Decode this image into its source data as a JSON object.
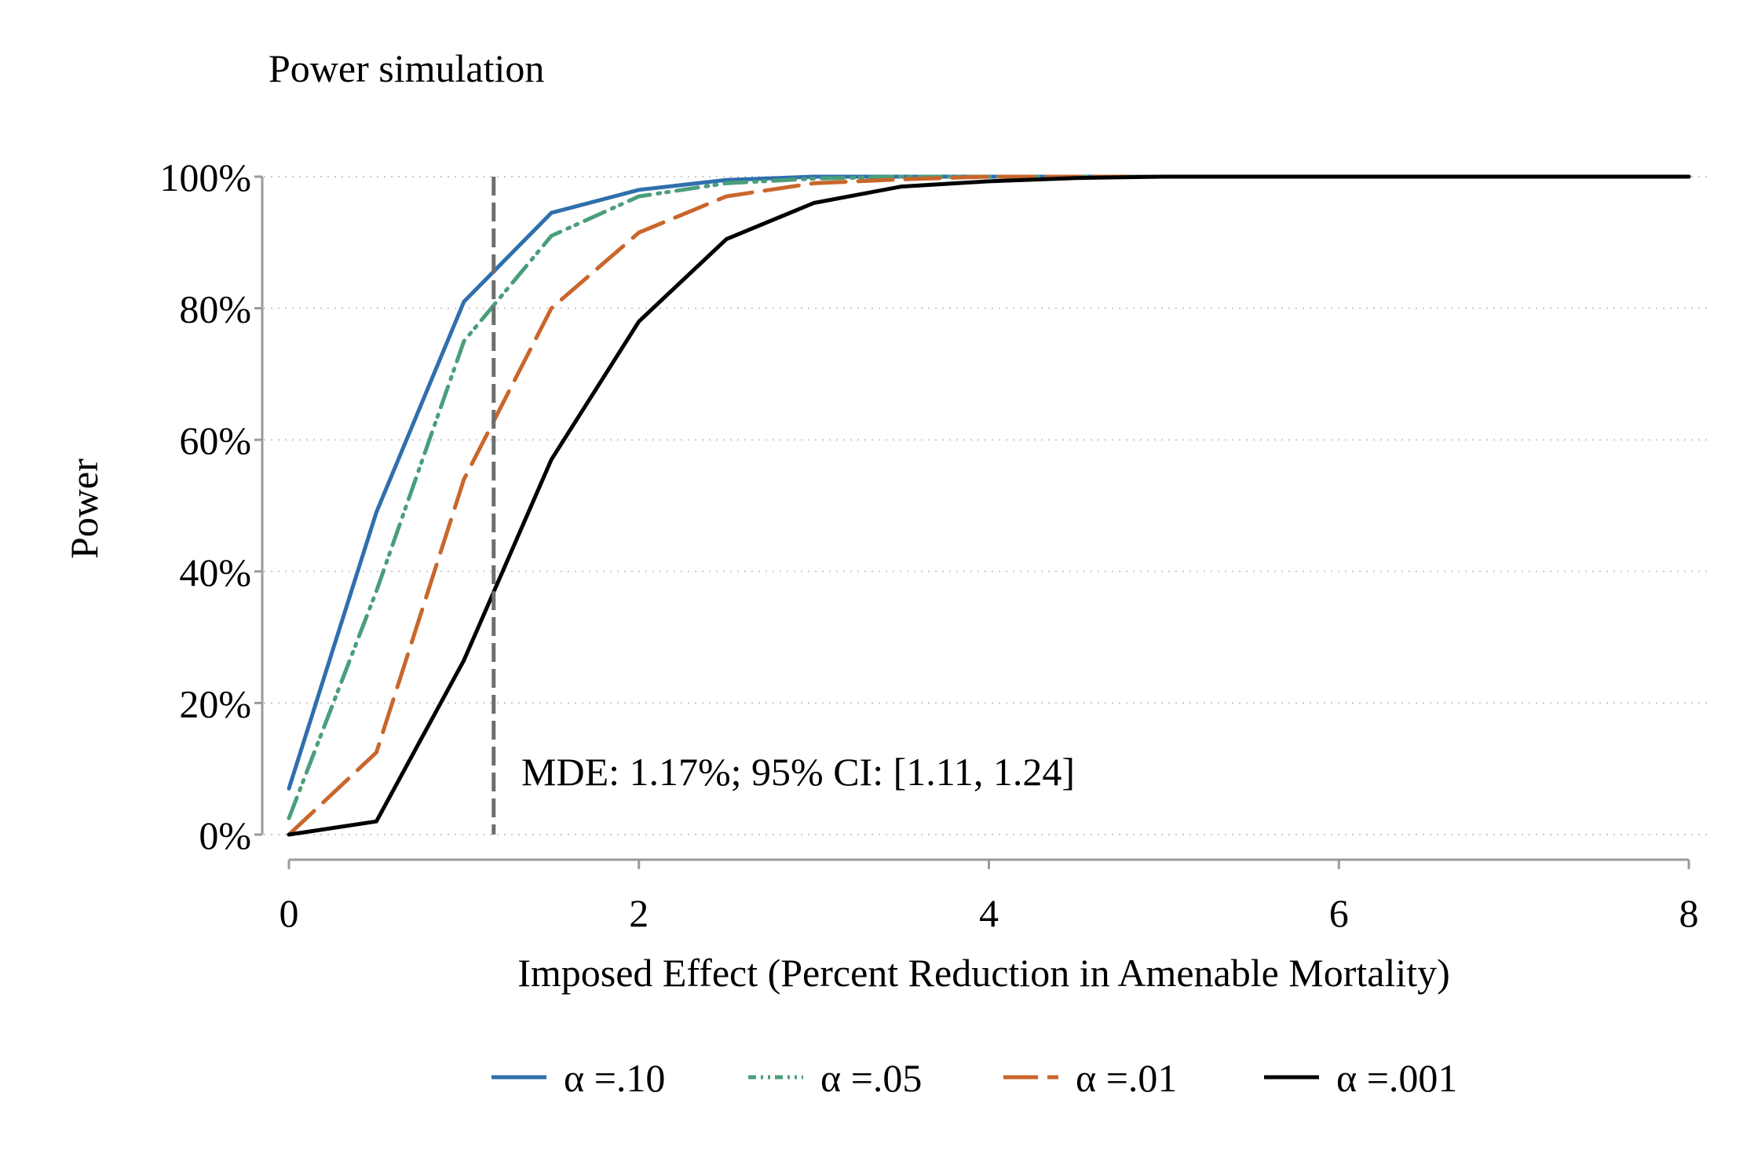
{
  "chart_data": {
    "type": "line",
    "title": "Power simulation",
    "xlabel": "Imposed Effect (Percent Reduction in Amenable Mortality)",
    "ylabel": "Power",
    "xlim": [
      0,
      8
    ],
    "ylim": [
      0,
      100
    ],
    "x_ticks": [
      0,
      2,
      4,
      6,
      8
    ],
    "x_tick_labels": [
      "0",
      "2",
      "4",
      "6",
      "8"
    ],
    "y_ticks": [
      0,
      20,
      40,
      60,
      80,
      100
    ],
    "y_tick_labels": [
      "0%",
      "20%",
      "40%",
      "60%",
      "80%",
      "100%"
    ],
    "grid": "horizontal dotted",
    "legend_position": "bottom",
    "annotation": {
      "text": "MDE: 1.17%; 95% CI: [1.11, 1.24]",
      "x": 1.17
    },
    "x": [
      0,
      0.5,
      1,
      1.5,
      2,
      2.5,
      3,
      3.5,
      4,
      4.5,
      5,
      5.5,
      6,
      6.5,
      7,
      7.5,
      8
    ],
    "series": [
      {
        "name": "α =.10",
        "color": "#2f6fad",
        "dash": "solid",
        "values": [
          7,
          49,
          81,
          94.5,
          98,
          99.5,
          100,
          100,
          100,
          100,
          100,
          100,
          100,
          100,
          100,
          100,
          100
        ]
      },
      {
        "name": "α =.05",
        "color": "#4a9e7a",
        "dash": "dashdotdot",
        "values": [
          2.5,
          37,
          75,
          91,
          97,
          99,
          99.7,
          100,
          100,
          100,
          100,
          100,
          100,
          100,
          100,
          100,
          100
        ]
      },
      {
        "name": "α =.01",
        "color": "#c9662b",
        "dash": "longdash",
        "values": [
          0,
          12.5,
          54,
          80,
          91.5,
          97,
          99,
          99.6,
          100,
          100,
          100,
          100,
          100,
          100,
          100,
          100,
          100
        ]
      },
      {
        "name": "α =.001",
        "color": "#000000",
        "dash": "solid",
        "values": [
          0,
          2,
          26.5,
          57,
          78,
          90.5,
          96,
          98.5,
          99.3,
          99.8,
          100,
          100,
          100,
          100,
          100,
          100,
          100
        ]
      }
    ]
  }
}
